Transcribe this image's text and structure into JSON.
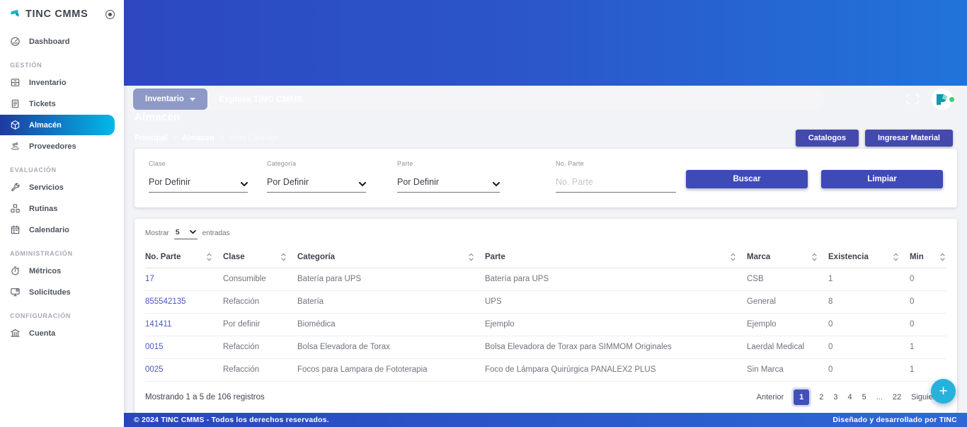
{
  "colors": {
    "header_gradient_start": "#2d48c1",
    "header_gradient_end": "#2173da",
    "active_item_gradient_start": "#1d3aa2",
    "active_item_gradient_end": "#00b9e8",
    "accent_button": "#4449ae",
    "primary_button": "#3e4ab6",
    "active_page": "#4150b5",
    "fab": "#27b2dc",
    "link": "#4a57c2",
    "logo_teal": "#1ab5c3",
    "status_green": "#3ecf6a"
  },
  "sidebar": {
    "logo": "TINC CMMS",
    "sections": [
      {
        "label": "",
        "items": [
          {
            "id": "dashboard",
            "label": "Dashboard",
            "icon": "dashboard-icon",
            "active": false
          }
        ]
      },
      {
        "label": "GESTIÓN",
        "items": [
          {
            "id": "inventario",
            "label": "Inventario",
            "icon": "inventory-icon",
            "active": false
          },
          {
            "id": "tickets",
            "label": "Tickets",
            "icon": "tickets-icon",
            "active": false
          },
          {
            "id": "almacen",
            "label": "Almacén",
            "icon": "warehouse-box-icon",
            "active": true
          },
          {
            "id": "proveedores",
            "label": "Proveedores",
            "icon": "providers-hand-icon",
            "active": false
          }
        ]
      },
      {
        "label": "EVALUACIÓN",
        "items": [
          {
            "id": "servicios",
            "label": "Servicios",
            "icon": "services-wrench-icon",
            "active": false
          },
          {
            "id": "rutinas",
            "label": "Rutinas",
            "icon": "routines-cubes-icon",
            "active": false
          },
          {
            "id": "calendario",
            "label": "Calendario",
            "icon": "calendar-icon",
            "active": false
          }
        ]
      },
      {
        "label": "ADMINISTRACIÓN",
        "items": [
          {
            "id": "metricos",
            "label": "Métricos",
            "icon": "metrics-timer-icon",
            "active": false
          },
          {
            "id": "solicitudes",
            "label": "Solicitudes",
            "icon": "requests-monitor-icon",
            "active": false
          }
        ]
      },
      {
        "label": "CONFIGURACIÓN",
        "items": [
          {
            "id": "cuenta",
            "label": "Cuenta",
            "icon": "account-building-icon",
            "active": false
          }
        ]
      }
    ]
  },
  "topbar": {
    "scope_button": "Inventario",
    "search_placeholder": "Explora TINC CMMS",
    "icons": [
      "chevron-down-icon",
      "fullscreen-icon",
      "user-avatar",
      "online-status-dot"
    ]
  },
  "page": {
    "title": "Almacen",
    "breadcrumb": [
      "Principal",
      "Almacen",
      "Vista Catálogo"
    ],
    "actions": [
      "Catalogos",
      "Ingresar Material"
    ]
  },
  "filters": {
    "fields": [
      {
        "label": "Clase",
        "type": "select",
        "value": "Por Definir"
      },
      {
        "label": "Categoría",
        "type": "select",
        "value": "Por Definir"
      },
      {
        "label": "Parte",
        "type": "select",
        "value": "Por Definir"
      },
      {
        "label": "No. Parte",
        "type": "input",
        "placeholder": "No. Parte"
      }
    ],
    "search_label": "Buscar",
    "clear_label": "Limpiar"
  },
  "table": {
    "show_prefix": "Mostrar",
    "show_value": "5",
    "show_suffix": "entradas",
    "columns": [
      "No. Parte",
      "Clase",
      "Categoría",
      "Parte",
      "Marca",
      "Existencia",
      "Min"
    ],
    "rows": [
      [
        "17",
        "Consumible",
        "Batería para UPS",
        "Batería para UPS",
        "CSB",
        "1",
        "0"
      ],
      [
        "855542135",
        "Refacción",
        "Batería",
        "UPS",
        "General",
        "8",
        "0"
      ],
      [
        "141411",
        "Por definir",
        "Biomédica",
        "Ejemplo",
        "Ejemplo",
        "0",
        "0"
      ],
      [
        "0015",
        "Refacción",
        "Bolsa Elevadora de Torax",
        "Bolsa Elevadora de Torax para SIMMOM Originales",
        "Laerdal Medical",
        "0",
        "1"
      ],
      [
        "0025",
        "Refacción",
        "Focos para Lampara de Fototerapia",
        "Foco de Lámpara Quirúrgica PANALEX2 PLUS",
        "Sin Marca",
        "0",
        "1"
      ]
    ],
    "summary": "Mostrando 1 a 5 de 106 registros",
    "pagination": {
      "prev": "Anterior",
      "pages": [
        "1",
        "2",
        "3",
        "4",
        "5",
        "...",
        "22"
      ],
      "active": "1",
      "next": "Siguiente"
    }
  },
  "fab": {
    "label": "+"
  },
  "footer": {
    "left": "© 2024 TINC CMMS - Todos los derechos reservados.",
    "right": "Diseñado y desarrollado por TINC"
  }
}
